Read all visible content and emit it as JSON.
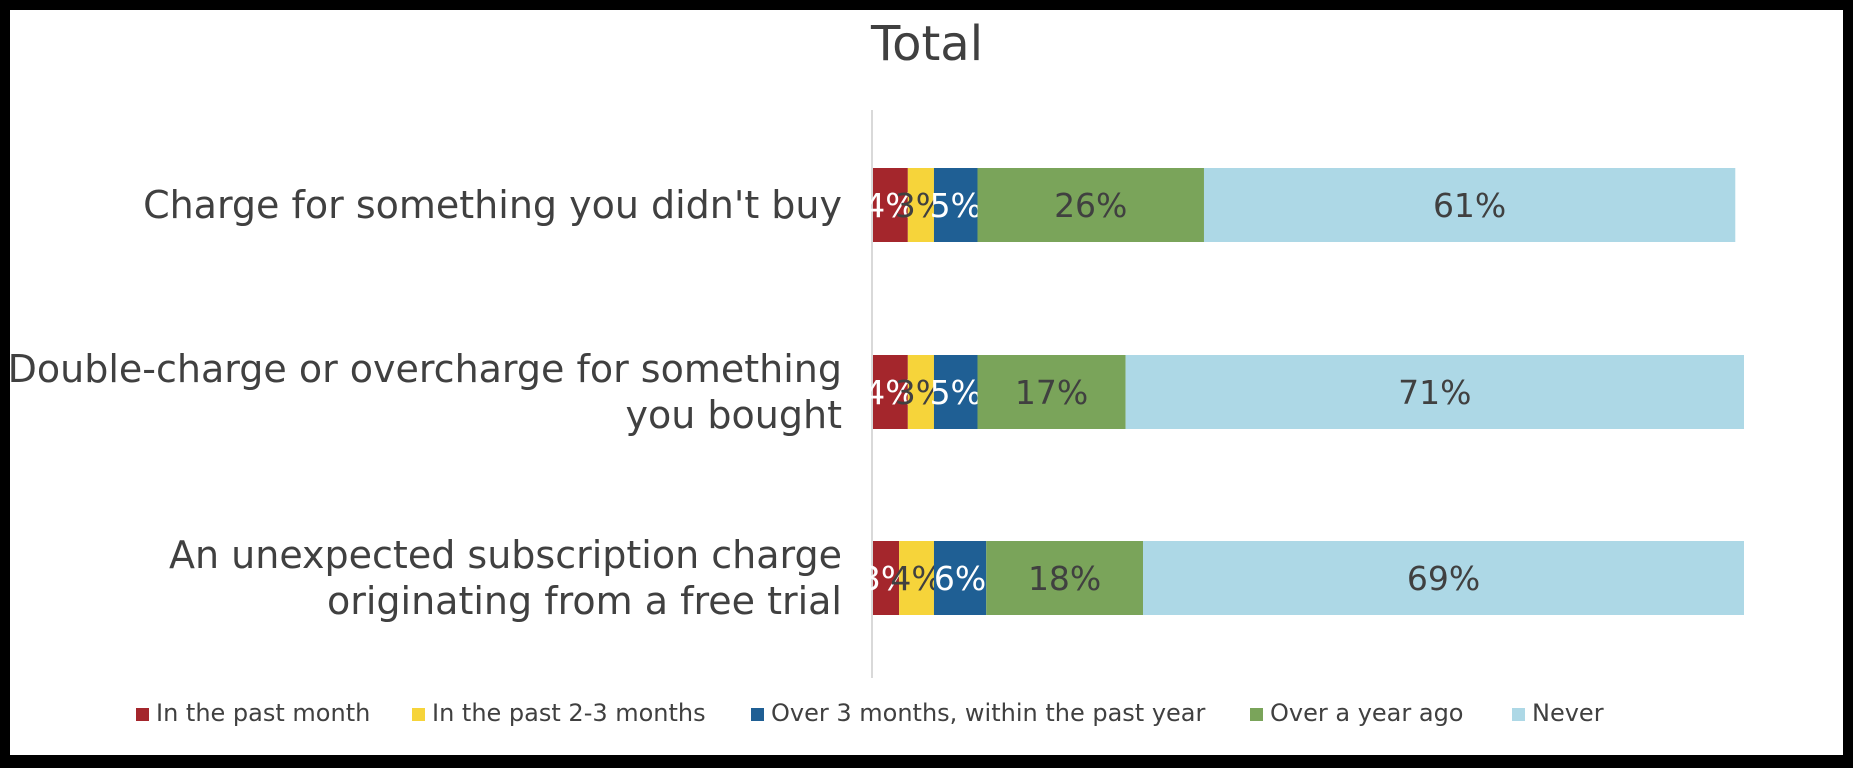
{
  "chart_data": {
    "type": "bar",
    "orientation": "horizontal",
    "stacked": true,
    "title": "Total",
    "categories": [
      "Charge for something you didn't buy",
      "Double-charge or overcharge for something you bought",
      "An unexpected subscription charge originating from a free trial"
    ],
    "category_lines": [
      [
        "Charge for something you didn't buy"
      ],
      [
        "Double-charge or overcharge for something",
        "you bought"
      ],
      [
        "An unexpected subscription charge",
        "originating from a free trial"
      ]
    ],
    "series": [
      {
        "name": "In the past month",
        "color": "#a4262c",
        "label_color": "#ffffff",
        "values": [
          4,
          4,
          3
        ]
      },
      {
        "name": "In the past 2-3 months",
        "color": "#f6d43a",
        "label_color": "#404040",
        "values": [
          3,
          3,
          4
        ]
      },
      {
        "name": "Over 3 months, within the past year",
        "color": "#1f5f94",
        "label_color": "#ffffff",
        "values": [
          5,
          5,
          6
        ]
      },
      {
        "name": "Over a year ago",
        "color": "#7aa45a",
        "label_color": "#404040",
        "values": [
          26,
          17,
          18
        ]
      },
      {
        "name": "Never",
        "color": "#add8e6",
        "label_color": "#404040",
        "values": [
          61,
          71,
          69
        ]
      }
    ],
    "value_format": "percent",
    "xlim": [
      0,
      100
    ],
    "legend_position": "bottom",
    "grid": false
  }
}
